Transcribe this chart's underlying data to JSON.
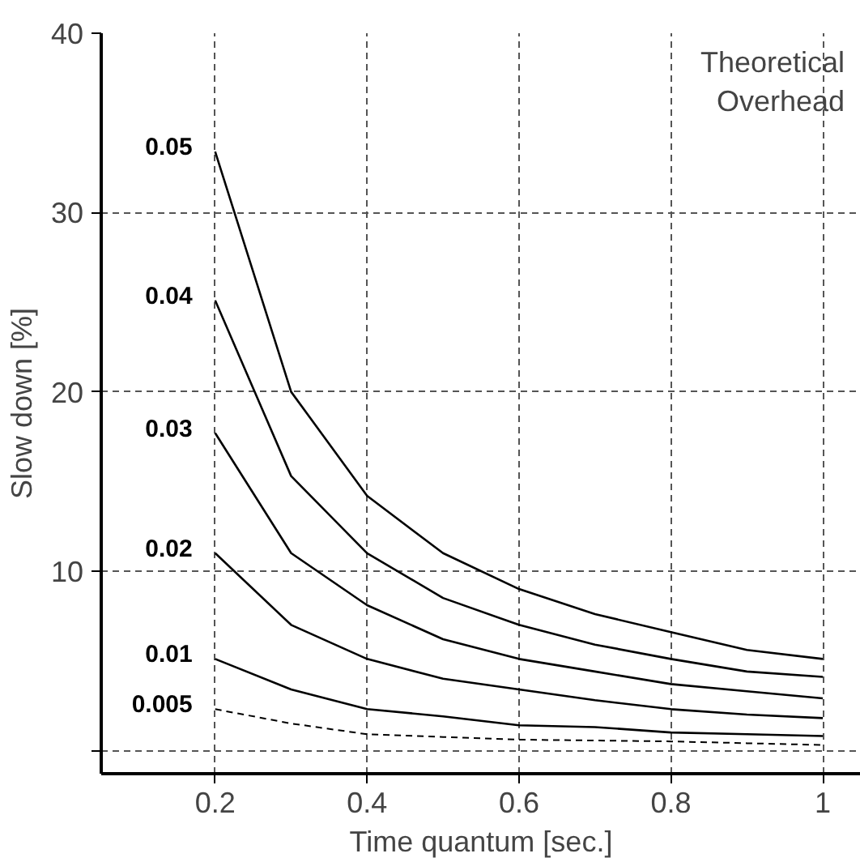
{
  "chart_data": {
    "type": "line",
    "xlabel": "Time quantum [sec.]",
    "ylabel": "Slow down [%]",
    "annotations": [
      "Theoretical\nOverhead"
    ],
    "x": [
      0.2,
      0.3,
      0.4,
      0.5,
      0.6,
      0.7,
      0.8,
      0.9,
      1.0
    ],
    "series": [
      {
        "name": "0.05",
        "color": "#000000",
        "values": [
          33.4,
          20.0,
          14.2,
          11.0,
          9.0,
          7.6,
          6.6,
          5.6,
          5.1
        ]
      },
      {
        "name": "0.04",
        "color": "#000000",
        "values": [
          25.1,
          15.3,
          11.0,
          8.5,
          7.0,
          5.9,
          5.1,
          4.4,
          4.1
        ]
      },
      {
        "name": "0.03",
        "color": "#000000",
        "values": [
          17.7,
          11.0,
          8.1,
          6.2,
          5.1,
          4.4,
          3.7,
          3.3,
          2.9
        ]
      },
      {
        "name": "0.02",
        "color": "#000000",
        "values": [
          11.0,
          7.0,
          5.1,
          4.0,
          3.4,
          2.8,
          2.3,
          2.0,
          1.8
        ]
      },
      {
        "name": "0.01",
        "color": "#000000",
        "values": [
          5.1,
          3.4,
          2.3,
          1.9,
          1.4,
          1.3,
          1.0,
          0.9,
          0.8
        ]
      },
      {
        "name": "0.005",
        "color": "#000000",
        "line_style": "dashed",
        "values": [
          2.3,
          1.5,
          0.9,
          0.75,
          0.6,
          0.55,
          0.5,
          0.4,
          0.3
        ]
      }
    ],
    "xlim": [
      0.05,
      1.05
    ],
    "ylim": [
      -1.3,
      40
    ],
    "xticks": [
      0.2,
      0.4,
      0.6,
      0.8,
      1
    ],
    "yticks": [
      {
        "value": 0,
        "label": null
      },
      10,
      20,
      30,
      40
    ],
    "grid": true,
    "legend": false,
    "marker": "none",
    "line_style": "solid"
  }
}
